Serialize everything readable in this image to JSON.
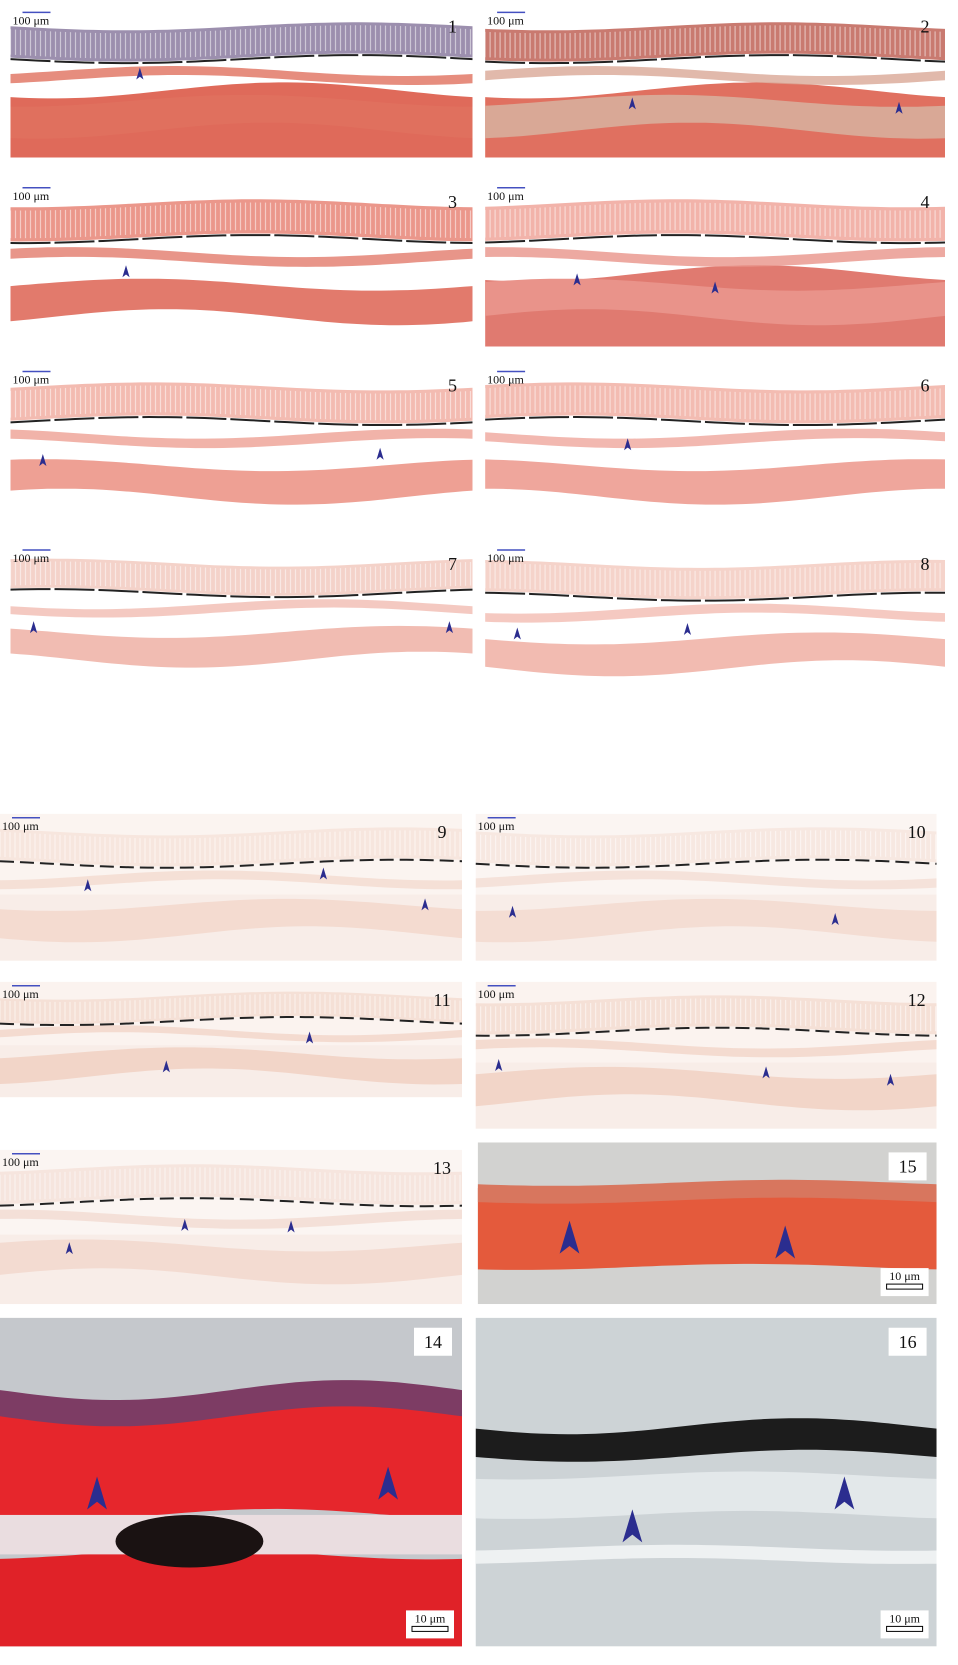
{
  "panels": [
    {
      "number": "1",
      "scale_bar": "100 μm"
    },
    {
      "number": "2",
      "scale_bar": "100 μm"
    },
    {
      "number": "3",
      "scale_bar": "100 μm"
    },
    {
      "number": "4",
      "scale_bar": "100 μm"
    },
    {
      "number": "5",
      "scale_bar": "100 μm"
    },
    {
      "number": "6",
      "scale_bar": "100 μm"
    },
    {
      "number": "7",
      "scale_bar": "100 μm"
    },
    {
      "number": "8",
      "scale_bar": "100 μm"
    },
    {
      "number": "9",
      "scale_bar": "100 μm"
    },
    {
      "number": "10",
      "scale_bar": "100 μm"
    },
    {
      "number": "11",
      "scale_bar": "100 μm"
    },
    {
      "number": "12",
      "scale_bar": "100 μm"
    },
    {
      "number": "13",
      "scale_bar": "100 μm"
    },
    {
      "number": "14",
      "scale_bar": "10 μm"
    },
    {
      "number": "15",
      "scale_bar": "10 μm"
    },
    {
      "number": "16",
      "scale_bar": "10 μm"
    }
  ]
}
